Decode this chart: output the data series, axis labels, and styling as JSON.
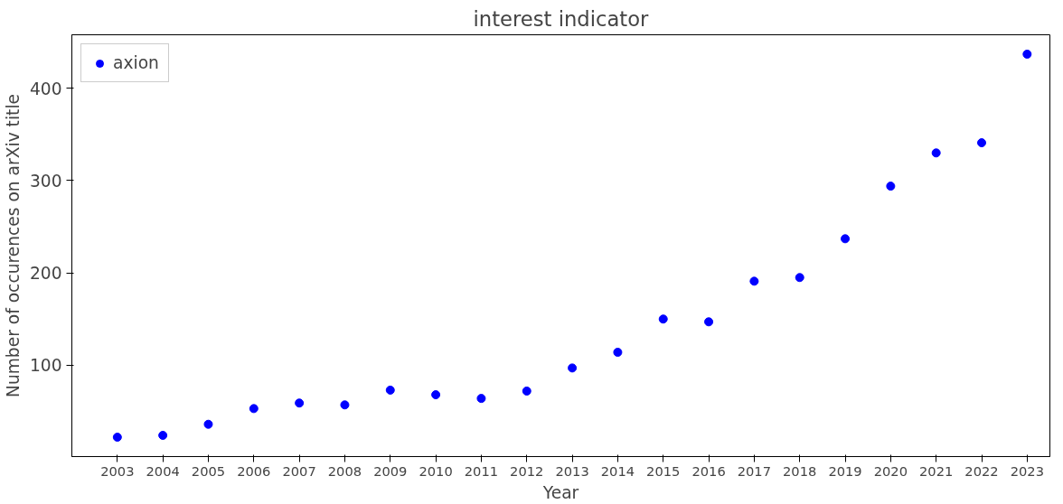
{
  "chart_data": {
    "type": "scatter",
    "title": "interest indicator",
    "xlabel": "Year",
    "ylabel": "Number of occurences on arXiv title",
    "x": [
      2003,
      2004,
      2005,
      2006,
      2007,
      2008,
      2009,
      2010,
      2011,
      2012,
      2013,
      2014,
      2015,
      2016,
      2017,
      2018,
      2019,
      2020,
      2021,
      2022,
      2023
    ],
    "series": [
      {
        "name": "axion",
        "color": "#0000ff",
        "values": [
          22,
          24,
          36,
          53,
          59,
          57,
          73,
          68,
          64,
          72,
          97,
          114,
          150,
          147,
          191,
          195,
          237,
          294,
          330,
          341,
          437
        ]
      }
    ],
    "xlim": [
      2002,
      2023.5
    ],
    "xticks": [
      2003,
      2004,
      2005,
      2006,
      2007,
      2008,
      2009,
      2010,
      2011,
      2012,
      2013,
      2014,
      2015,
      2016,
      2017,
      2018,
      2019,
      2020,
      2021,
      2022,
      2023
    ],
    "ylim": [
      1,
      458
    ],
    "yticks": [
      100,
      200,
      300,
      400
    ],
    "legend": "top left",
    "marker": "circle",
    "grid": false
  }
}
